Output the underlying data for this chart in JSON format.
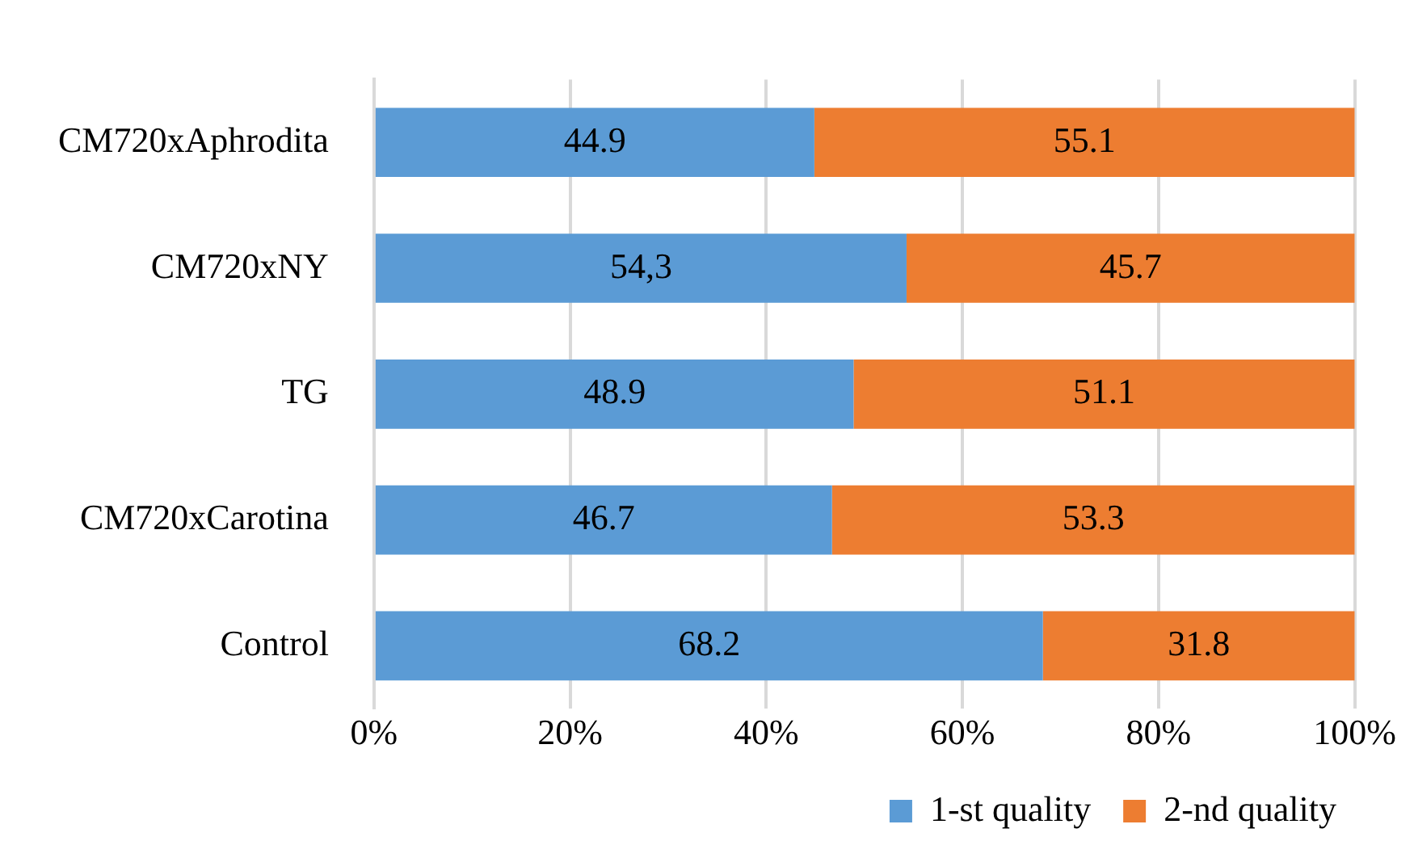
{
  "chart_data": {
    "type": "bar",
    "orientation": "horizontal",
    "stacked": true,
    "categories": [
      "CM720xAphrodita",
      "CM720xNY",
      "TG",
      "CM720xCarotina",
      "Control"
    ],
    "series": [
      {
        "name": "1-st quality",
        "color": "#5b9bd5",
        "values": [
          44.9,
          54.3,
          48.9,
          46.7,
          68.2
        ],
        "value_labels": [
          "44.9",
          "54,3",
          "48.9",
          "46.7",
          "68.2"
        ]
      },
      {
        "name": "2-nd quality",
        "color": "#ed7d31",
        "values": [
          55.1,
          45.7,
          51.1,
          53.3,
          31.8
        ],
        "value_labels": [
          "55.1",
          "45.7",
          "51.1",
          "53.3",
          "31.8"
        ]
      }
    ],
    "xlim": [
      0,
      100
    ],
    "xticks": [
      {
        "value": 0,
        "label": "0%"
      },
      {
        "value": 20,
        "label": "20%"
      },
      {
        "value": 40,
        "label": "40%"
      },
      {
        "value": 60,
        "label": "60%"
      },
      {
        "value": 80,
        "label": "80%"
      },
      {
        "value": 100,
        "label": "100%"
      }
    ],
    "grid": "x",
    "legend": "bottom right"
  }
}
